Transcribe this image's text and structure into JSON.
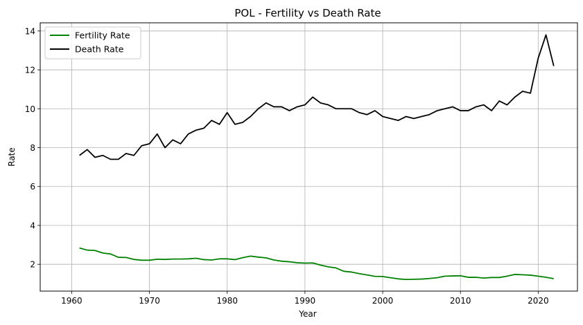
{
  "chart_data": {
    "type": "line",
    "title": "POL - Fertility vs Death Rate",
    "xlabel": "Year",
    "ylabel": "Rate",
    "xlim": [
      1955.95,
      2025.05
    ],
    "ylim": [
      0.62,
      14.42
    ],
    "xticks": [
      1960,
      1970,
      1980,
      1990,
      2000,
      2010,
      2020
    ],
    "yticks": [
      2,
      4,
      6,
      8,
      10,
      12,
      14
    ],
    "grid": true,
    "legend": "top-left",
    "x": [
      1961,
      1962,
      1963,
      1964,
      1965,
      1966,
      1967,
      1968,
      1969,
      1970,
      1971,
      1972,
      1973,
      1974,
      1975,
      1976,
      1977,
      1978,
      1979,
      1980,
      1981,
      1982,
      1983,
      1984,
      1985,
      1986,
      1987,
      1988,
      1989,
      1990,
      1991,
      1992,
      1993,
      1994,
      1995,
      1996,
      1997,
      1998,
      1999,
      2000,
      2001,
      2002,
      2003,
      2004,
      2005,
      2006,
      2007,
      2008,
      2009,
      2010,
      2011,
      2012,
      2013,
      2014,
      2015,
      2016,
      2017,
      2018,
      2019,
      2020,
      2021,
      2022
    ],
    "series": [
      {
        "name": "Fertility Rate",
        "color": "#008000",
        "values": [
          2.84,
          2.73,
          2.71,
          2.58,
          2.53,
          2.36,
          2.35,
          2.25,
          2.21,
          2.21,
          2.26,
          2.25,
          2.27,
          2.27,
          2.28,
          2.31,
          2.24,
          2.22,
          2.28,
          2.28,
          2.24,
          2.34,
          2.42,
          2.37,
          2.33,
          2.22,
          2.16,
          2.13,
          2.08,
          2.06,
          2.07,
          1.96,
          1.87,
          1.81,
          1.64,
          1.6,
          1.52,
          1.45,
          1.38,
          1.37,
          1.31,
          1.25,
          1.22,
          1.23,
          1.24,
          1.27,
          1.31,
          1.39,
          1.4,
          1.41,
          1.33,
          1.33,
          1.29,
          1.32,
          1.32,
          1.39,
          1.48,
          1.46,
          1.44,
          1.39,
          1.33,
          1.26
        ]
      },
      {
        "name": "Death Rate",
        "color": "#000000",
        "values": [
          7.6,
          7.9,
          7.5,
          7.6,
          7.4,
          7.4,
          7.7,
          7.6,
          8.1,
          8.2,
          8.7,
          8.0,
          8.4,
          8.2,
          8.7,
          8.9,
          9.0,
          9.4,
          9.2,
          9.8,
          9.2,
          9.3,
          9.6,
          10.0,
          10.3,
          10.1,
          10.1,
          9.9,
          10.1,
          10.2,
          10.6,
          10.3,
          10.2,
          10.0,
          10.0,
          10.0,
          9.8,
          9.7,
          9.9,
          9.6,
          9.5,
          9.4,
          9.6,
          9.5,
          9.6,
          9.7,
          9.9,
          10.0,
          10.1,
          9.9,
          9.9,
          10.1,
          10.2,
          9.9,
          10.4,
          10.2,
          10.6,
          10.9,
          10.8,
          12.6,
          13.8,
          12.2
        ]
      }
    ]
  }
}
